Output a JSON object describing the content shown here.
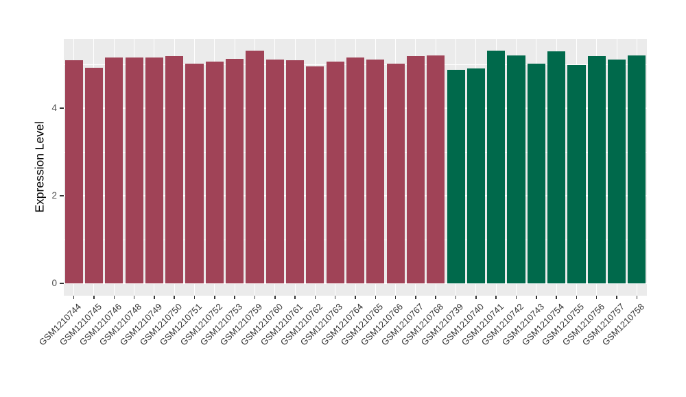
{
  "chart_data": {
    "type": "bar",
    "title": "",
    "xlabel": "",
    "ylabel": "Expression Level",
    "y_ticks": [
      0,
      2,
      4
    ],
    "y_minor_ticks": [
      1,
      3,
      5
    ],
    "ylim": [
      -0.28,
      5.58
    ],
    "grid": "on",
    "legend": "none",
    "panel_bg": "#EBEBEB",
    "grid_color": "#FFFFFF",
    "tick_color": "#333333",
    "series": [
      {
        "name": "group-maroon",
        "color": "#A04357",
        "categories": [
          "GSM1210744",
          "GSM1210745",
          "GSM1210746",
          "GSM1210748",
          "GSM1210749",
          "GSM1210750",
          "GSM1210751",
          "GSM1210752",
          "GSM1210753",
          "GSM1210759",
          "GSM1210760",
          "GSM1210761",
          "GSM1210762",
          "GSM1210763",
          "GSM1210764",
          "GSM1210765",
          "GSM1210766",
          "GSM1210767",
          "GSM1210768"
        ],
        "values": [
          5.09,
          4.92,
          5.15,
          5.16,
          5.16,
          5.18,
          5.01,
          5.07,
          5.12,
          5.31,
          5.11,
          5.09,
          4.95,
          5.07,
          5.15,
          5.11,
          5.01,
          5.19,
          5.21
        ]
      },
      {
        "name": "group-green",
        "color": "#00694B",
        "categories": [
          "GSM1210739",
          "GSM1210740",
          "GSM1210741",
          "GSM1210742",
          "GSM1210743",
          "GSM1210754",
          "GSM1210755",
          "GSM1210756",
          "GSM1210757",
          "GSM1210758"
        ],
        "values": [
          4.87,
          4.91,
          5.31,
          5.2,
          5.01,
          5.3,
          4.99,
          5.19,
          5.11,
          5.21
        ]
      }
    ]
  }
}
